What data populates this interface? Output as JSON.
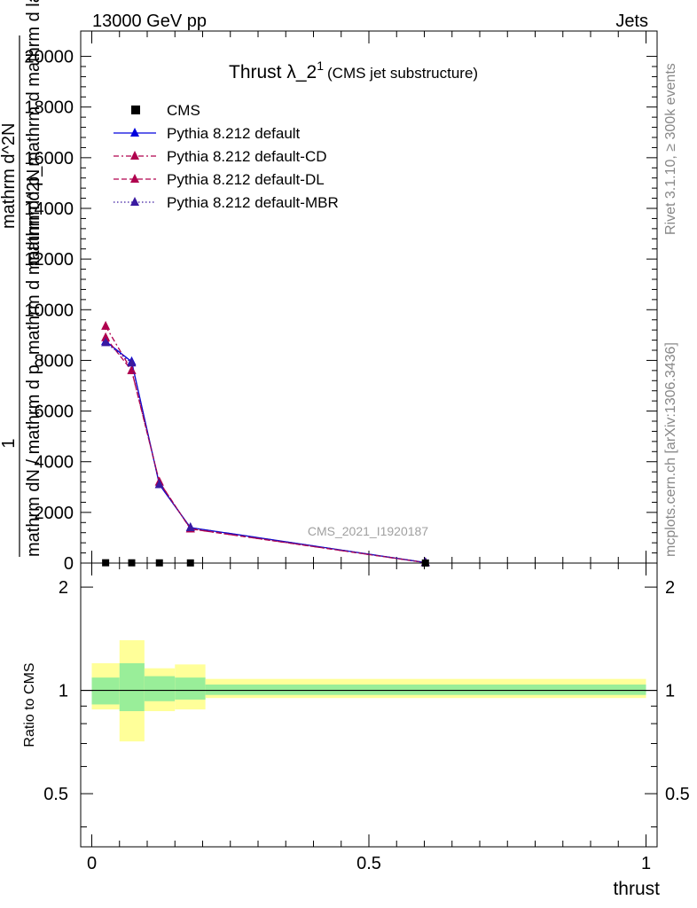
{
  "header": {
    "left": "13000 GeV pp",
    "right": "Jets"
  },
  "side": {
    "rivet": "Rivet 3.1.10, ≥ 300k events",
    "mcplots": "mcplots.cern.ch [arXiv:1306.3436]"
  },
  "main_plot": {
    "title_main": "Thrust λ_2",
    "title_sup": "1",
    "title_sub": "(CMS jet substructure)",
    "ylabel_num": "1",
    "ylabel_den": "mathrm dN / mathrm d p_mathrm d mathrm d^2N",
    "ylabel_top_a": "mathrm d^2N",
    "ylabel_top_b": "mathrm d p_mathrm d mathrm d lambda",
    "watermark": "CMS_2021_I1920187",
    "yticks": [
      0,
      2000,
      4000,
      6000,
      8000,
      10000,
      12000,
      14000,
      16000,
      18000,
      20000
    ],
    "ytick_labels": [
      "0",
      "2000",
      "4000",
      "6000",
      "8000",
      "10000",
      "12000",
      "14000",
      "16000",
      "18000",
      "20000"
    ]
  },
  "ratio_plot": {
    "ylabel": "Ratio to CMS",
    "yticks": [
      0.5,
      1,
      2
    ],
    "ytick_labels": [
      "0.5",
      "1",
      "2"
    ],
    "xticks": [
      0,
      0.5,
      1
    ],
    "xtick_labels": [
      "0",
      "0.5",
      "1"
    ],
    "xlabel": "thrust"
  },
  "legend": [
    {
      "label": "CMS",
      "color": "#000000",
      "style": "data"
    },
    {
      "label": "Pythia 8.212 default",
      "color": "#0000dd",
      "style": "solid"
    },
    {
      "label": "Pythia 8.212 default-CD",
      "color": "#b0004e",
      "style": "dashdot"
    },
    {
      "label": "Pythia 8.212 default-DL",
      "color": "#b0004e",
      "style": "dashed"
    },
    {
      "label": "Pythia 8.212 default-MBR",
      "color": "#3a1aa0",
      "style": "dotted"
    }
  ],
  "chart_data": {
    "type": "line",
    "title": "Thrust λ_2^1 (CMS jet substructure)",
    "xlabel": "thrust",
    "ylabel": "1/(dN/dp) d^2N/(dp d lambda)",
    "xlim": [
      -0.02,
      1.02
    ],
    "ylim": [
      0,
      21000
    ],
    "ratio_ylim": [
      0.35,
      2.35
    ],
    "bins": [
      [
        0.0,
        0.05
      ],
      [
        0.05,
        0.095
      ],
      [
        0.095,
        0.15
      ],
      [
        0.15,
        0.205
      ],
      [
        0.205,
        1.0
      ]
    ],
    "x": [
      0.025,
      0.072,
      0.122,
      0.178,
      0.602
    ],
    "data": {
      "name": "CMS",
      "values": [
        12,
        10,
        8,
        6,
        2
      ]
    },
    "series": [
      {
        "name": "Pythia 8.212 default",
        "values": [
          8750,
          7950,
          3100,
          1400,
          20
        ],
        "errors": [
          80,
          120,
          60,
          40,
          5
        ]
      },
      {
        "name": "Pythia 8.212 default-CD",
        "values": [
          9350,
          7600,
          3200,
          1350,
          18
        ],
        "errors": [
          150,
          120,
          60,
          40,
          5
        ]
      },
      {
        "name": "Pythia 8.212 default-DL",
        "values": [
          8900,
          7600,
          3200,
          1350,
          18
        ],
        "errors": [
          120,
          120,
          60,
          40,
          5
        ]
      },
      {
        "name": "Pythia 8.212 default-MBR",
        "values": [
          8700,
          7900,
          3100,
          1400,
          20
        ],
        "errors": [
          80,
          120,
          60,
          40,
          5
        ]
      }
    ],
    "ratio_bands": {
      "stat": [
        [
          0.91,
          1.09
        ],
        [
          0.87,
          1.2
        ],
        [
          0.93,
          1.1
        ],
        [
          0.94,
          1.09
        ],
        [
          0.97,
          1.04
        ]
      ],
      "total": [
        [
          0.88,
          1.2
        ],
        [
          0.71,
          1.4
        ],
        [
          0.87,
          1.16
        ],
        [
          0.88,
          1.19
        ],
        [
          0.95,
          1.08
        ]
      ]
    }
  }
}
